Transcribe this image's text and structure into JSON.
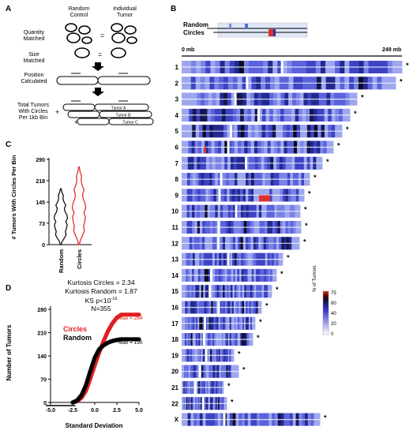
{
  "panel_a": {
    "label": "A",
    "col_random": [
      "Random",
      "Control"
    ],
    "col_tumor": [
      "Individual",
      "Tumor"
    ],
    "quantity": [
      "Quantity",
      "Matched"
    ],
    "size": [
      "Size",
      "Matched"
    ],
    "position": [
      "Position",
      "Calculated"
    ],
    "total": [
      "Total Tumors",
      "With Circles",
      "Per 1kb Bin"
    ],
    "eq": "=",
    "plus": "+",
    "tumors": [
      "Tumor A",
      "Tumor B",
      "Tumor C"
    ]
  },
  "panel_b": {
    "label": "B",
    "legend_random": "Random",
    "legend_circles": "Circles",
    "axis_start": "0 mb",
    "axis_end": "249 mb",
    "colorbar_title": "% of Tumors",
    "colorbar_ticks": [
      "75",
      "60",
      "40",
      "20",
      "0"
    ],
    "star": "*",
    "chromosomes": [
      {
        "name": "1",
        "len": 249
      },
      {
        "name": "2",
        "len": 242
      },
      {
        "name": "3",
        "len": 198
      },
      {
        "name": "4",
        "len": 190
      },
      {
        "name": "5",
        "len": 181
      },
      {
        "name": "6",
        "len": 171
      },
      {
        "name": "7",
        "len": 159
      },
      {
        "name": "8",
        "len": 145
      },
      {
        "name": "9",
        "len": 138
      },
      {
        "name": "10",
        "len": 134
      },
      {
        "name": "11",
        "len": 135
      },
      {
        "name": "12",
        "len": 133
      },
      {
        "name": "13",
        "len": 114
      },
      {
        "name": "14",
        "len": 107
      },
      {
        "name": "15",
        "len": 102
      },
      {
        "name": "16",
        "len": 90
      },
      {
        "name": "17",
        "len": 83
      },
      {
        "name": "18",
        "len": 80
      },
      {
        "name": "19",
        "len": 59
      },
      {
        "name": "20",
        "len": 64
      },
      {
        "name": "21",
        "len": 47
      },
      {
        "name": "22",
        "len": 51
      },
      {
        "name": "X",
        "len": 156
      }
    ]
  },
  "chart_data": [
    {
      "panel": "C",
      "type": "violin",
      "ylabel": "# Tumors With Circles Per Bin",
      "yticks": [
        0,
        73,
        145,
        218,
        290
      ],
      "ylim": [
        0,
        290
      ],
      "categories": [
        "Random",
        "Circles"
      ],
      "series": [
        {
          "name": "Random",
          "color": "#000000",
          "max": 190
        },
        {
          "name": "Circles",
          "color": "#e02020",
          "max": 264
        }
      ]
    },
    {
      "panel": "D",
      "type": "scatter",
      "xlabel": "Standard Deviation",
      "ylabel": "Number of Tumors",
      "xticks": [
        -5.0,
        -2.5,
        0.0,
        2.5,
        5.0
      ],
      "xlim": [
        -5,
        5
      ],
      "yticks": [
        0,
        70,
        140,
        210,
        280
      ],
      "ylim": [
        0,
        280
      ],
      "annotations": [
        "Kurtosis Circles = 2.34",
        "Kurtosis Random = 1.87",
        "KS p<10",
        "-16",
        "N=355"
      ],
      "legend": [
        "Circles",
        "Random"
      ],
      "max_labels": [
        "Max = 264",
        "Max = 190"
      ],
      "series": [
        {
          "name": "Circles",
          "color": "#e02020",
          "max": 264,
          "points": [
            [
              -2.5,
              0
            ],
            [
              -2.0,
              4
            ],
            [
              -1.5,
              14
            ],
            [
              -1.0,
              35
            ],
            [
              -0.5,
              72
            ],
            [
              0,
              112
            ],
            [
              0.5,
              150
            ],
            [
              1.0,
              185
            ],
            [
              1.5,
              215
            ],
            [
              2.0,
              238
            ],
            [
              2.5,
              255
            ],
            [
              3.0,
              264
            ],
            [
              5.0,
              264
            ]
          ]
        },
        {
          "name": "Random",
          "color": "#000000",
          "max": 190,
          "points": [
            [
              -2.5,
              0
            ],
            [
              -2.0,
              6
            ],
            [
              -1.5,
              22
            ],
            [
              -1.0,
              52
            ],
            [
              -0.5,
              95
            ],
            [
              0,
              135
            ],
            [
              0.5,
              160
            ],
            [
              1.0,
              172
            ],
            [
              1.5,
              180
            ],
            [
              2.0,
              185
            ],
            [
              2.5,
              188
            ],
            [
              3.0,
              190
            ],
            [
              5.0,
              190
            ]
          ]
        }
      ]
    }
  ]
}
